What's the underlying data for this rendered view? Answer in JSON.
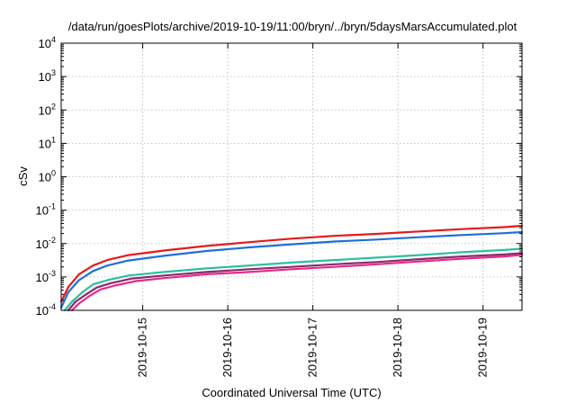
{
  "chart_data": {
    "type": "line",
    "title": "/data/run/goesPlots/archive/2019-10-19/11:00/bryn/../bryn/5daysMarsAccumulated.plot",
    "xlabel": "Coordinated Universal Time (UTC)",
    "ylabel": "cSv",
    "yscale": "log",
    "ylim": [
      0.0001,
      10000
    ],
    "xlim": [
      "2019-10-14T01:00",
      "2019-10-19T11:00"
    ],
    "grid": true,
    "legend": "none",
    "x_ticks": [
      {
        "x": "2019-10-15",
        "label": "2019-10-15"
      },
      {
        "x": "2019-10-16",
        "label": "2019-10-16"
      },
      {
        "x": "2019-10-17",
        "label": "2019-10-17"
      },
      {
        "x": "2019-10-18",
        "label": "2019-10-18"
      },
      {
        "x": "2019-10-19",
        "label": "2019-10-19"
      }
    ],
    "y_ticks": [
      {
        "value": 0.0001,
        "base": "10",
        "exp": "-4"
      },
      {
        "value": 0.001,
        "base": "10",
        "exp": "-3"
      },
      {
        "value": 0.01,
        "base": "10",
        "exp": "-2"
      },
      {
        "value": 0.1,
        "base": "10",
        "exp": "-1"
      },
      {
        "value": 1,
        "base": "10",
        "exp": "0"
      },
      {
        "value": 10,
        "base": "10",
        "exp": "1"
      },
      {
        "value": 100,
        "base": "10",
        "exp": "2"
      },
      {
        "value": 1000,
        "base": "10",
        "exp": "3"
      },
      {
        "value": 10000,
        "base": "10",
        "exp": "4"
      }
    ],
    "series": [
      {
        "color": "#e41a1c",
        "x": [
          "2019-10-14T01:00",
          "2019-10-14T03:00",
          "2019-10-14T06:00",
          "2019-10-14T10:00",
          "2019-10-14T14:00",
          "2019-10-14T20:00",
          "2019-10-15T06:00",
          "2019-10-15T18:00",
          "2019-10-16T06:00",
          "2019-10-16T18:00",
          "2019-10-17T06:00",
          "2019-10-17T18:00",
          "2019-10-18T06:00",
          "2019-10-18T18:00",
          "2019-10-19T06:00",
          "2019-10-19T11:00"
        ],
        "values": [
          0.00018,
          0.0005,
          0.0012,
          0.0022,
          0.0032,
          0.0045,
          0.0062,
          0.0085,
          0.011,
          0.014,
          0.017,
          0.0195,
          0.023,
          0.027,
          0.031,
          0.034
        ]
      },
      {
        "color": "#1f6fd6",
        "x": [
          "2019-10-14T01:00",
          "2019-10-14T03:00",
          "2019-10-14T06:00",
          "2019-10-14T10:00",
          "2019-10-14T14:00",
          "2019-10-14T20:00",
          "2019-10-15T06:00",
          "2019-10-15T18:00",
          "2019-10-16T06:00",
          "2019-10-16T18:00",
          "2019-10-17T06:00",
          "2019-10-17T18:00",
          "2019-10-18T06:00",
          "2019-10-18T18:00",
          "2019-10-19T06:00",
          "2019-10-19T11:00"
        ],
        "values": [
          0.00012,
          0.00035,
          0.0008,
          0.0015,
          0.0022,
          0.0031,
          0.0043,
          0.006,
          0.0077,
          0.0095,
          0.0115,
          0.0132,
          0.0155,
          0.018,
          0.0205,
          0.022
        ]
      },
      {
        "color": "#2cbfa0",
        "x": [
          "2019-10-14T02:00",
          "2019-10-14T04:00",
          "2019-10-14T07:00",
          "2019-10-14T10:00",
          "2019-10-14T14:00",
          "2019-10-14T20:00",
          "2019-10-15T06:00",
          "2019-10-15T18:00",
          "2019-10-16T06:00",
          "2019-10-16T18:00",
          "2019-10-17T06:00",
          "2019-10-17T18:00",
          "2019-10-18T06:00",
          "2019-10-18T18:00",
          "2019-10-19T06:00",
          "2019-10-19T11:00"
        ],
        "values": [
          0.0001,
          0.00018,
          0.00035,
          0.0006,
          0.0008,
          0.0011,
          0.0014,
          0.0018,
          0.0022,
          0.0027,
          0.0032,
          0.0038,
          0.0045,
          0.0055,
          0.0064,
          0.007
        ]
      },
      {
        "color": "#8b2a6b",
        "x": [
          "2019-10-14T03:00",
          "2019-10-14T05:00",
          "2019-10-14T08:00",
          "2019-10-14T11:00",
          "2019-10-14T15:00",
          "2019-10-14T21:00",
          "2019-10-15T06:00",
          "2019-10-15T18:00",
          "2019-10-16T06:00",
          "2019-10-16T18:00",
          "2019-10-17T06:00",
          "2019-10-17T18:00",
          "2019-10-18T06:00",
          "2019-10-18T18:00",
          "2019-10-19T06:00",
          "2019-10-19T11:00"
        ],
        "values": [
          0.0001,
          0.00018,
          0.0003,
          0.00048,
          0.00065,
          0.0009,
          0.0011,
          0.0014,
          0.0017,
          0.002,
          0.0024,
          0.0028,
          0.0034,
          0.0041,
          0.0047,
          0.0052
        ]
      },
      {
        "color": "#e7298a",
        "x": [
          "2019-10-14T04:00",
          "2019-10-14T06:00",
          "2019-10-14T09:00",
          "2019-10-14T12:00",
          "2019-10-14T16:00",
          "2019-10-14T22:00",
          "2019-10-15T06:00",
          "2019-10-15T18:00",
          "2019-10-16T06:00",
          "2019-10-16T18:00",
          "2019-10-17T06:00",
          "2019-10-17T18:00",
          "2019-10-18T06:00",
          "2019-10-18T18:00",
          "2019-10-19T06:00",
          "2019-10-19T11:00"
        ],
        "values": [
          0.0001,
          0.00016,
          0.00027,
          0.00042,
          0.00055,
          0.00075,
          0.00092,
          0.0012,
          0.0014,
          0.0017,
          0.002,
          0.0024,
          0.0029,
          0.0035,
          0.0041,
          0.0046
        ]
      }
    ]
  }
}
